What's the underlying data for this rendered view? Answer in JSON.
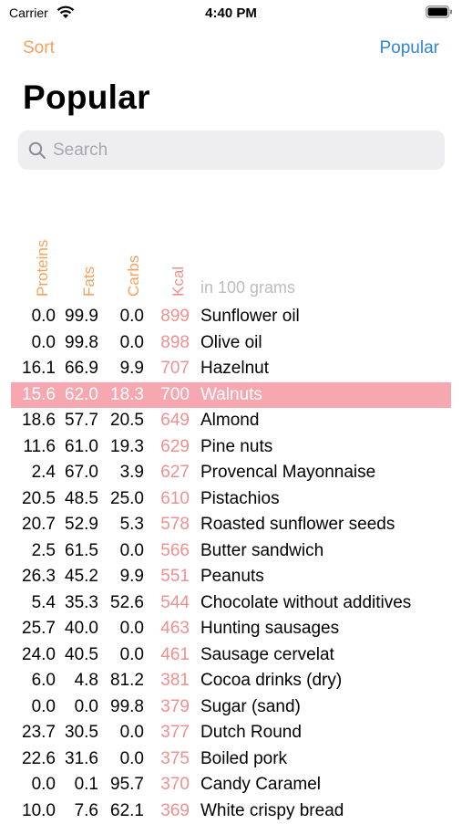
{
  "status_bar": {
    "carrier": "Carrier",
    "time": "4:40 PM"
  },
  "nav": {
    "left_button": "Sort",
    "right_button": "Popular"
  },
  "title": "Popular",
  "search": {
    "placeholder": "Search",
    "value": ""
  },
  "table": {
    "headers": {
      "proteins": "Proteins",
      "fats": "Fats",
      "carbs": "Carbs",
      "kcal": "Kcal",
      "unit_note": "in 100 grams"
    },
    "highlight_color": "#f6a7b0",
    "rows": [
      {
        "proteins": "0.0",
        "fats": "99.9",
        "carbs": "0.0",
        "kcal": "899",
        "name": "Sunflower oil"
      },
      {
        "proteins": "0.0",
        "fats": "99.8",
        "carbs": "0.0",
        "kcal": "898",
        "name": "Olive oil"
      },
      {
        "proteins": "16.1",
        "fats": "66.9",
        "carbs": "9.9",
        "kcal": "707",
        "name": "Hazelnut"
      },
      {
        "proteins": "15.6",
        "fats": "62.0",
        "carbs": "18.3",
        "kcal": "700",
        "name": "Walnuts",
        "highlighted": true
      },
      {
        "proteins": "18.6",
        "fats": "57.7",
        "carbs": "20.5",
        "kcal": "649",
        "name": "Almond"
      },
      {
        "proteins": "11.6",
        "fats": "61.0",
        "carbs": "19.3",
        "kcal": "629",
        "name": "Pine nuts"
      },
      {
        "proteins": "2.4",
        "fats": "67.0",
        "carbs": "3.9",
        "kcal": "627",
        "name": "Provencal Mayonnaise"
      },
      {
        "proteins": "20.5",
        "fats": "48.5",
        "carbs": "25.0",
        "kcal": "610",
        "name": "Pistachios"
      },
      {
        "proteins": "20.7",
        "fats": "52.9",
        "carbs": "5.3",
        "kcal": "578",
        "name": "Roasted sunflower seeds"
      },
      {
        "proteins": "2.5",
        "fats": "61.5",
        "carbs": "0.0",
        "kcal": "566",
        "name": "Butter sandwich"
      },
      {
        "proteins": "26.3",
        "fats": "45.2",
        "carbs": "9.9",
        "kcal": "551",
        "name": "Peanuts"
      },
      {
        "proteins": "5.4",
        "fats": "35.3",
        "carbs": "52.6",
        "kcal": "544",
        "name": "Chocolate without additives"
      },
      {
        "proteins": "25.7",
        "fats": "40.0",
        "carbs": "0.0",
        "kcal": "463",
        "name": "Hunting sausages"
      },
      {
        "proteins": "24.0",
        "fats": "40.5",
        "carbs": "0.0",
        "kcal": "461",
        "name": "Sausage cervelat"
      },
      {
        "proteins": "6.0",
        "fats": "4.8",
        "carbs": "81.2",
        "kcal": "381",
        "name": "Cocoa drinks (dry)"
      },
      {
        "proteins": "0.0",
        "fats": "0.0",
        "carbs": "99.8",
        "kcal": "379",
        "name": "Sugar (sand)"
      },
      {
        "proteins": "23.7",
        "fats": "30.5",
        "carbs": "0.0",
        "kcal": "377",
        "name": "Dutch Round"
      },
      {
        "proteins": "22.6",
        "fats": "31.6",
        "carbs": "0.0",
        "kcal": "375",
        "name": "Boiled pork"
      },
      {
        "proteins": "0.0",
        "fats": "0.1",
        "carbs": "95.7",
        "kcal": "370",
        "name": "Candy Caramel"
      },
      {
        "proteins": "10.0",
        "fats": "7.6",
        "carbs": "62.1",
        "kcal": "369",
        "name": "White crispy bread"
      }
    ]
  }
}
